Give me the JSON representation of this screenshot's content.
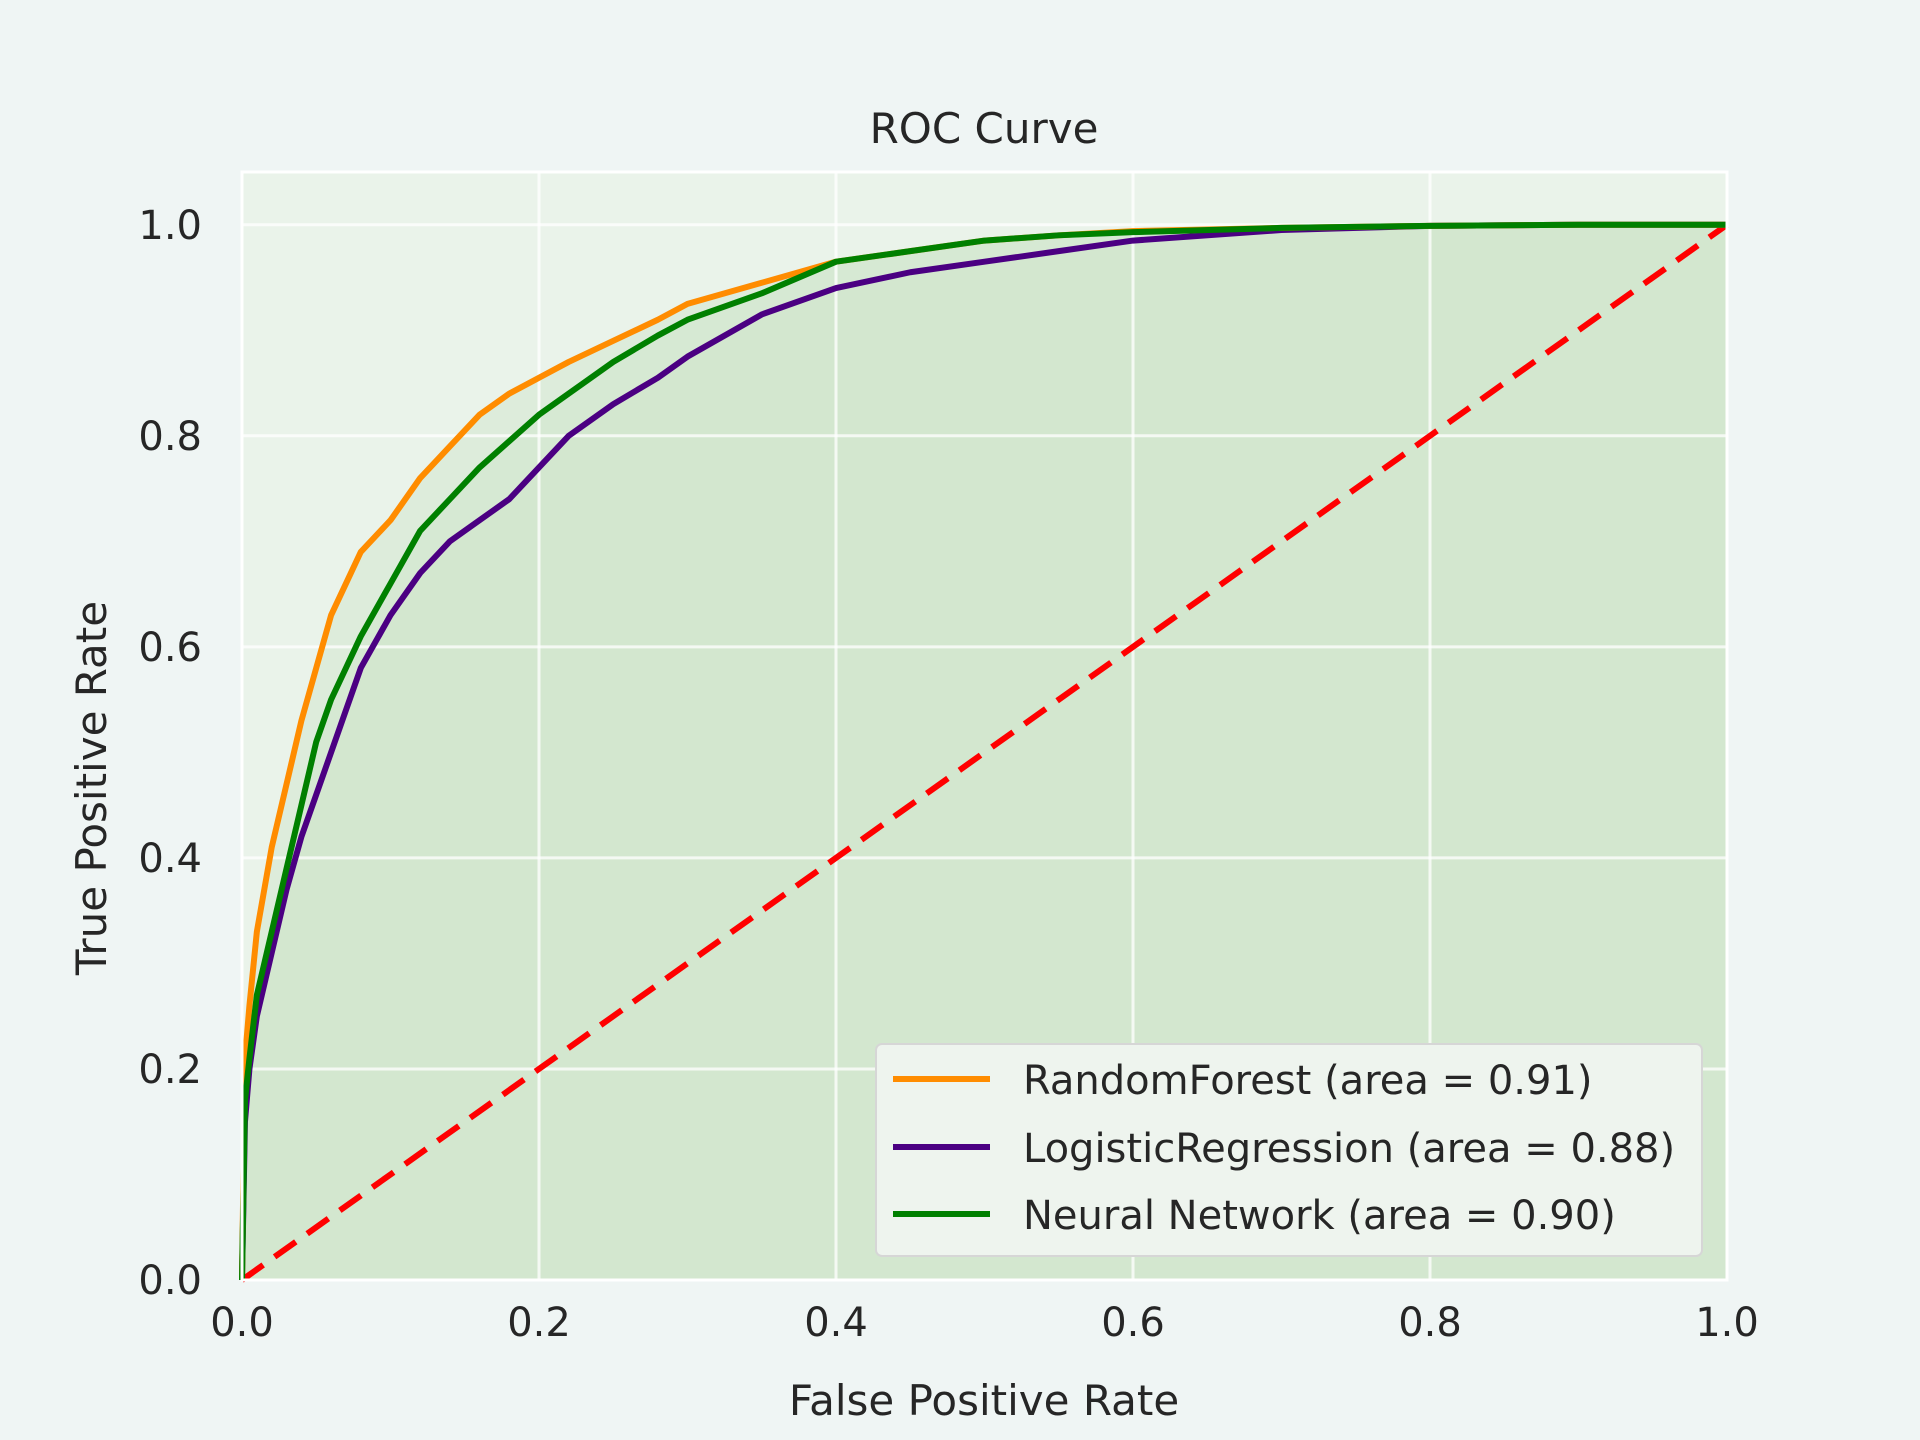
{
  "chart_data": {
    "type": "line",
    "title": "ROC Curve",
    "xlabel": "False Positive Rate",
    "ylabel": "True Positive Rate",
    "xlim": [
      0.0,
      1.0
    ],
    "ylim": [
      0.0,
      1.05
    ],
    "xticks": [
      "0.0",
      "0.2",
      "0.4",
      "0.6",
      "0.8",
      "1.0"
    ],
    "yticks": [
      "0.0",
      "0.2",
      "0.4",
      "0.6",
      "0.8",
      "1.0"
    ],
    "grid": true,
    "legend_position": "lower-right",
    "colors": {
      "background": "#eff5f4",
      "plot_background": "#eaf3ea",
      "fill": "#cfe5cb",
      "grid": "#ffffff",
      "diagonal": "#ff0000"
    },
    "series": [
      {
        "name": "RandomForest (area = 0.91)",
        "color": "#ff8c00",
        "x": [
          0,
          0.002,
          0.005,
          0.01,
          0.02,
          0.03,
          0.04,
          0.05,
          0.06,
          0.07,
          0.08,
          0.1,
          0.12,
          0.14,
          0.16,
          0.18,
          0.2,
          0.22,
          0.25,
          0.28,
          0.3,
          0.35,
          0.4,
          0.45,
          0.5,
          0.55,
          0.6,
          0.7,
          0.8,
          0.9,
          1.0
        ],
        "y": [
          0,
          0.21,
          0.26,
          0.33,
          0.41,
          0.47,
          0.53,
          0.58,
          0.63,
          0.66,
          0.69,
          0.72,
          0.76,
          0.79,
          0.82,
          0.84,
          0.855,
          0.87,
          0.89,
          0.91,
          0.925,
          0.945,
          0.965,
          0.975,
          0.985,
          0.99,
          0.994,
          0.997,
          0.999,
          1.0,
          1.0
        ]
      },
      {
        "name": "LogisticRegression (area = 0.88)",
        "color": "#4b0082",
        "x": [
          0,
          0.002,
          0.005,
          0.01,
          0.02,
          0.03,
          0.04,
          0.05,
          0.06,
          0.07,
          0.08,
          0.1,
          0.12,
          0.14,
          0.16,
          0.18,
          0.2,
          0.22,
          0.25,
          0.28,
          0.3,
          0.35,
          0.4,
          0.45,
          0.5,
          0.55,
          0.6,
          0.7,
          0.8,
          0.9,
          1.0
        ],
        "y": [
          0,
          0.15,
          0.2,
          0.25,
          0.31,
          0.37,
          0.42,
          0.46,
          0.5,
          0.54,
          0.58,
          0.63,
          0.67,
          0.7,
          0.72,
          0.74,
          0.77,
          0.8,
          0.83,
          0.855,
          0.875,
          0.915,
          0.94,
          0.955,
          0.965,
          0.975,
          0.985,
          0.995,
          0.999,
          1.0,
          1.0
        ]
      },
      {
        "name": "Neural Network (area = 0.90)",
        "color": "#008000",
        "x": [
          0,
          0.002,
          0.005,
          0.01,
          0.02,
          0.03,
          0.04,
          0.05,
          0.06,
          0.07,
          0.08,
          0.1,
          0.12,
          0.14,
          0.16,
          0.18,
          0.2,
          0.22,
          0.25,
          0.28,
          0.3,
          0.35,
          0.4,
          0.45,
          0.5,
          0.55,
          0.6,
          0.7,
          0.8,
          0.9,
          1.0
        ],
        "y": [
          0,
          0.17,
          0.21,
          0.27,
          0.33,
          0.39,
          0.45,
          0.51,
          0.55,
          0.58,
          0.61,
          0.66,
          0.71,
          0.74,
          0.77,
          0.795,
          0.82,
          0.84,
          0.87,
          0.895,
          0.91,
          0.935,
          0.965,
          0.975,
          0.985,
          0.99,
          0.993,
          0.997,
          0.999,
          1.0,
          1.0
        ]
      }
    ],
    "diagonal": {
      "x": [
        0,
        1
      ],
      "y": [
        0,
        1
      ]
    }
  }
}
